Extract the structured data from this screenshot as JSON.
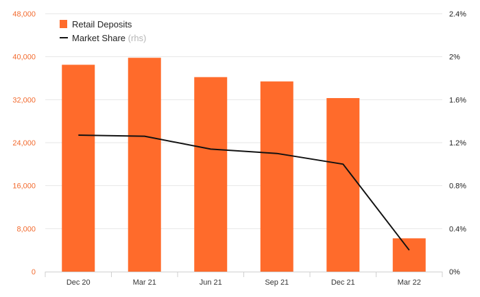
{
  "chart_data": {
    "type": "bar",
    "categories": [
      "Dec 20",
      "Mar 21",
      "Jun 21",
      "Sep 21",
      "Dec 21",
      "Mar 22"
    ],
    "series": [
      {
        "name": "Retail Deposits",
        "type": "bar",
        "axis": "left",
        "color": "#ff6b2b",
        "values": [
          38500,
          39800,
          36200,
          35400,
          32300,
          6200
        ]
      },
      {
        "name": "Market Share",
        "name_suffix": "(rhs)",
        "type": "line",
        "axis": "right",
        "color": "#111111",
        "values": [
          1.27,
          1.26,
          1.14,
          1.1,
          1.0,
          0.2
        ]
      }
    ],
    "y_left": {
      "ylim": [
        0,
        48000
      ],
      "ticks": [
        0,
        8000,
        16000,
        24000,
        32000,
        40000,
        48000
      ],
      "tick_labels": [
        "0",
        "8,000",
        "16,000",
        "24,000",
        "32,000",
        "40,000",
        "48,000"
      ],
      "color": "#f26a2e"
    },
    "y_right": {
      "ylim": [
        0,
        2.4
      ],
      "ticks": [
        0,
        0.4,
        0.8,
        1.2,
        1.6,
        2.0,
        2.4
      ],
      "tick_labels": [
        "0%",
        "0.4%",
        "0.8%",
        "1.2%",
        "1.6%",
        "2%",
        "2.4%"
      ]
    },
    "legend": {
      "placement": "top-left",
      "items": [
        {
          "label": "Retail Deposits",
          "suffix": ""
        },
        {
          "label": "Market Share",
          "suffix": "(rhs)"
        }
      ]
    },
    "grid": true,
    "title": "",
    "xlabel": "",
    "ylabel": ""
  }
}
